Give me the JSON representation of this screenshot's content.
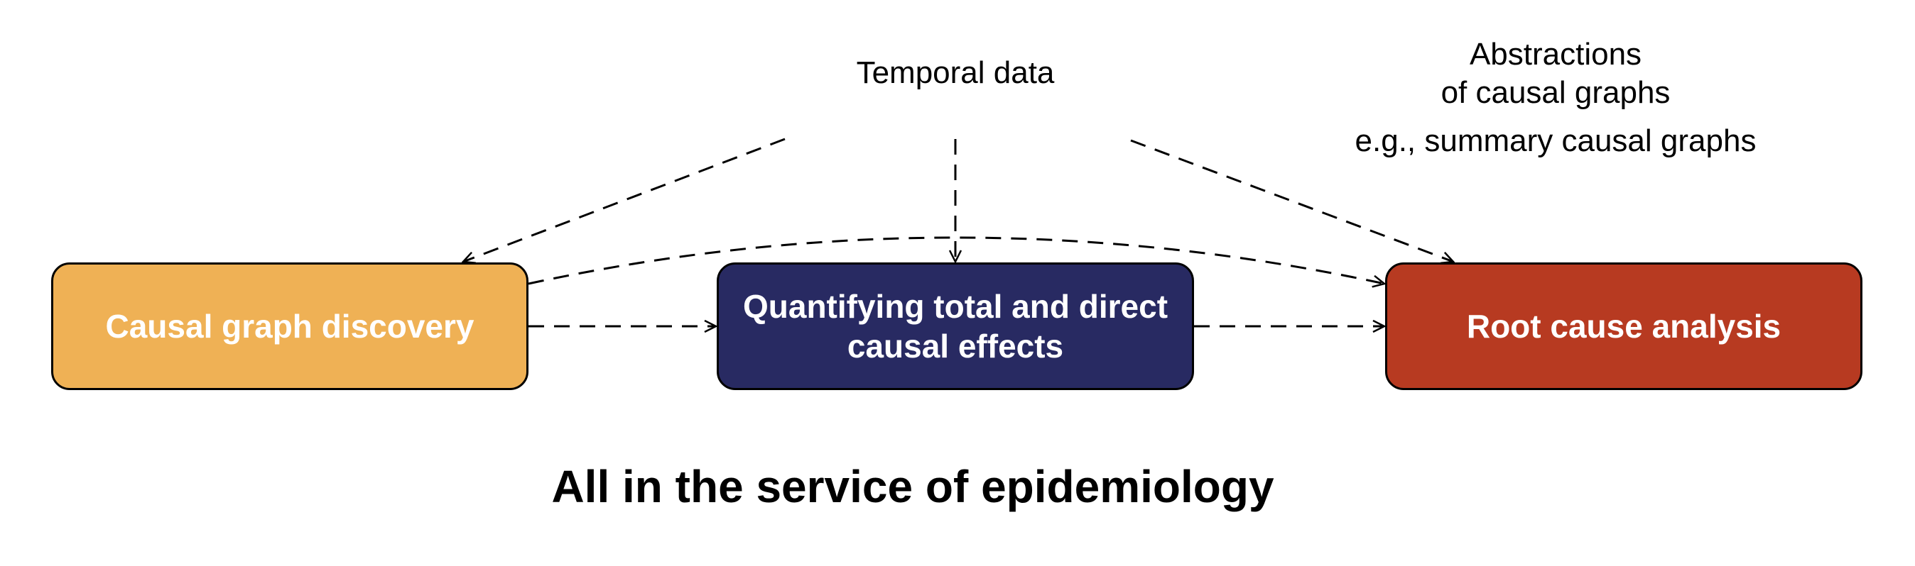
{
  "colors": {
    "discovery_fill": "#EFB155",
    "effects_fill": "#282A62",
    "rca_fill": "#B73A21",
    "box_border": "#000000",
    "arrow": "#000000",
    "box_text": "#FFFFFF"
  },
  "inputs": {
    "temporal_data": "Temporal data",
    "abstractions_line1": "Abstractions",
    "abstractions_line2": "of causal graphs",
    "abstractions_example": "e.g., summary causal graphs"
  },
  "boxes": {
    "discovery": {
      "label": "Causal graph discovery"
    },
    "effects": {
      "label_line1": "Quantifying total and direct",
      "label_line2": "causal effects"
    },
    "rca": {
      "label": "Root cause analysis"
    }
  },
  "footer": {
    "title": "All in the service of epidemiology"
  }
}
